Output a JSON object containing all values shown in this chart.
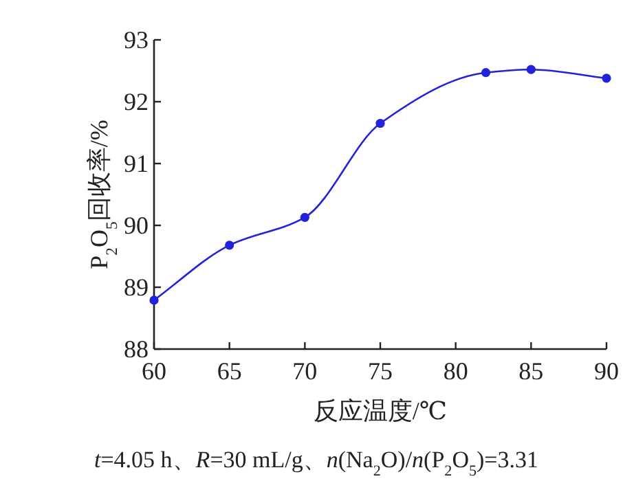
{
  "chart_data": {
    "type": "line",
    "xlabel": "反应温度/℃",
    "ylabel": "P$_{2}$O$_{5}$回收率/%",
    "annotations": [
      "*t*=4.05 h、*R*=30 mL/g、*n*(Na$_{2}$O)/*n*(P$_{2}$O$_{5}$)=3.31"
    ],
    "x": [
      60,
      65,
      70,
      75,
      82,
      85,
      90
    ],
    "series": [
      {
        "color": "#2222dd",
        "values": [
          88.79,
          89.68,
          90.13,
          91.65,
          92.47,
          92.52,
          92.38
        ]
      }
    ],
    "xlim": [
      60,
      90
    ],
    "ylim": [
      88,
      93
    ],
    "xticks": [
      60,
      65,
      70,
      75,
      80,
      85,
      90
    ],
    "yticks": [
      88,
      89,
      90,
      91,
      92,
      93
    ],
    "marker": "circle",
    "line_style": "solid"
  }
}
